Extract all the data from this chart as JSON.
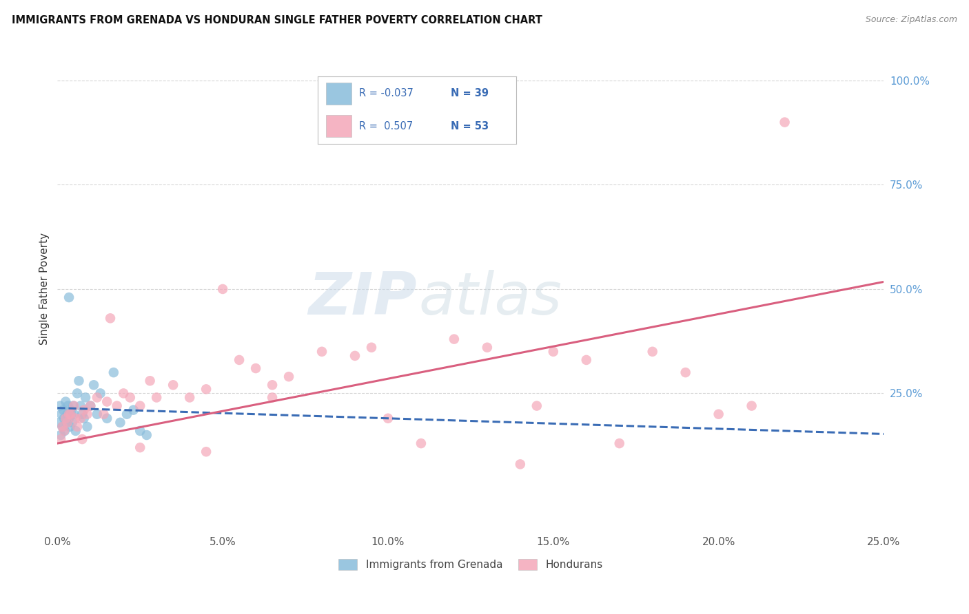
{
  "title": "IMMIGRANTS FROM GRENADA VS HONDURAN SINGLE FATHER POVERTY CORRELATION CHART",
  "source": "Source: ZipAtlas.com",
  "ylabel": "Single Father Poverty",
  "x_tick_labels": [
    "0.0%",
    "5.0%",
    "10.0%",
    "15.0%",
    "20.0%",
    "25.0%"
  ],
  "x_tick_values": [
    0.0,
    5.0,
    10.0,
    15.0,
    20.0,
    25.0
  ],
  "y_tick_labels_right": [
    "100.0%",
    "75.0%",
    "50.0%",
    "25.0%"
  ],
  "y_tick_values": [
    100.0,
    75.0,
    50.0,
    25.0
  ],
  "xlim": [
    0.0,
    25.0
  ],
  "ylim": [
    -8.0,
    108.0
  ],
  "legend_r1": "-0.037",
  "legend_n1": "39",
  "legend_r2": "0.507",
  "legend_n2": "53",
  "legend_label1": "Immigrants from Grenada",
  "legend_label2": "Hondurans",
  "watermark_zip": "ZIP",
  "watermark_atlas": "atlas",
  "blue_color": "#89bcdb",
  "pink_color": "#f4a7b9",
  "blue_line_color": "#3a6cb5",
  "pink_line_color": "#d95f7f",
  "right_axis_color": "#5b9bd5",
  "r_color": "#3a6cb5",
  "background_color": "#ffffff",
  "grid_color": "#cccccc",
  "grenada_x": [
    0.05,
    0.08,
    0.1,
    0.12,
    0.15,
    0.18,
    0.2,
    0.22,
    0.25,
    0.28,
    0.3,
    0.32,
    0.35,
    0.38,
    0.4,
    0.42,
    0.45,
    0.48,
    0.5,
    0.55,
    0.6,
    0.65,
    0.7,
    0.75,
    0.8,
    0.85,
    0.9,
    1.0,
    1.1,
    1.2,
    1.3,
    1.5,
    1.7,
    1.9,
    2.1,
    2.3,
    2.5,
    2.7,
    0.35
  ],
  "grenada_y": [
    18.0,
    22.0,
    15.0,
    20.0,
    17.0,
    21.0,
    19.0,
    16.0,
    23.0,
    18.0,
    20.0,
    22.0,
    19.0,
    17.0,
    21.0,
    20.0,
    18.0,
    22.0,
    20.0,
    16.0,
    25.0,
    28.0,
    22.0,
    20.0,
    19.0,
    24.0,
    17.0,
    22.0,
    27.0,
    20.0,
    25.0,
    19.0,
    30.0,
    18.0,
    20.0,
    21.0,
    16.0,
    15.0,
    48.0
  ],
  "honduran_x": [
    0.1,
    0.15,
    0.2,
    0.25,
    0.3,
    0.4,
    0.5,
    0.6,
    0.7,
    0.8,
    0.9,
    1.0,
    1.2,
    1.4,
    1.6,
    1.8,
    2.0,
    2.2,
    2.5,
    2.8,
    3.0,
    3.5,
    4.0,
    4.5,
    5.0,
    5.5,
    6.0,
    6.5,
    7.0,
    8.0,
    9.0,
    10.0,
    11.0,
    12.0,
    13.0,
    14.0,
    15.0,
    16.0,
    17.0,
    18.0,
    19.0,
    20.0,
    21.0,
    0.35,
    0.55,
    0.75,
    1.5,
    2.5,
    4.5,
    6.5,
    9.5,
    14.5,
    22.0
  ],
  "honduran_y": [
    14.0,
    17.0,
    16.0,
    19.0,
    18.0,
    20.0,
    22.0,
    17.0,
    19.0,
    21.0,
    20.0,
    22.0,
    24.0,
    20.0,
    43.0,
    22.0,
    25.0,
    24.0,
    22.0,
    28.0,
    24.0,
    27.0,
    24.0,
    26.0,
    50.0,
    33.0,
    31.0,
    27.0,
    29.0,
    35.0,
    34.0,
    19.0,
    13.0,
    38.0,
    36.0,
    8.0,
    35.0,
    33.0,
    13.0,
    35.0,
    30.0,
    20.0,
    22.0,
    20.0,
    19.0,
    14.0,
    23.0,
    12.0,
    11.0,
    24.0,
    36.0,
    22.0,
    90.0
  ],
  "blue_intercept": 21.5,
  "blue_slope": -0.25,
  "pink_intercept": 13.0,
  "pink_slope": 1.55
}
